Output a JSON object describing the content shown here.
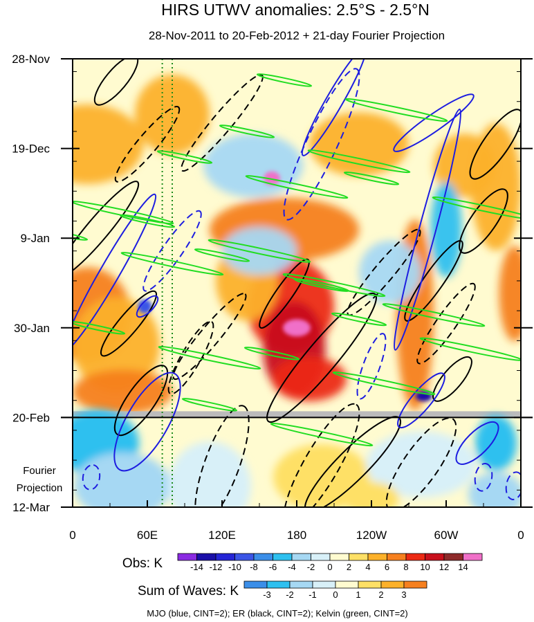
{
  "chart_data": {
    "type": "heatmap",
    "title": "HIRS UTWV anomalies: 2.5°S - 2.5°N",
    "subtitle": "28-Nov-2011 to 20-Feb-2012 + 21-day Fourier Projection",
    "xlabel": "",
    "ylabel": "",
    "x_ticks": [
      {
        "lon": 0,
        "label": "0"
      },
      {
        "lon": 60,
        "label": "60E"
      },
      {
        "lon": 120,
        "label": "120E"
      },
      {
        "lon": 180,
        "label": "180"
      },
      {
        "lon": 240,
        "label": "120W"
      },
      {
        "lon": 300,
        "label": "60W"
      },
      {
        "lon": 360,
        "label": "0"
      }
    ],
    "xlim": [
      0,
      360
    ],
    "y_ticks": [
      {
        "day": 0,
        "label": "28-Nov"
      },
      {
        "day": 21,
        "label": "19-Dec"
      },
      {
        "day": 42,
        "label": "9-Jan"
      },
      {
        "day": 63,
        "label": "30-Jan"
      },
      {
        "day": 84,
        "label": "20-Feb"
      },
      {
        "day": 105,
        "label": "12-Mar"
      }
    ],
    "ylim_days": [
      0,
      105
    ],
    "projection_start_day": 84,
    "projection_label": [
      "Fourier",
      "Projection"
    ],
    "reference_lines_lon": [
      72,
      80
    ],
    "obs_colorbar": {
      "label": "Obs: K",
      "levels": [
        -14,
        -12,
        -10,
        -8,
        -6,
        -4,
        -2,
        0,
        2,
        4,
        6,
        8,
        10,
        12,
        14
      ],
      "colors": [
        "#8a2be2",
        "#1a0fa8",
        "#2525d6",
        "#3b55e6",
        "#3b8ee8",
        "#2ec0ef",
        "#a6d8f3",
        "#d8f0f8",
        "#fffbd0",
        "#fee066",
        "#fcb12a",
        "#f6801f",
        "#ec2a14",
        "#c8101c",
        "#8e2a2a",
        "#f070c8"
      ]
    },
    "waves_colorbar": {
      "label": "Sum of Waves: K",
      "levels": [
        -3,
        -2,
        -1,
        0,
        1,
        2,
        3
      ],
      "colors": [
        "#3b8ee8",
        "#2ec0ef",
        "#a6d8f3",
        "#d8f0f8",
        "#fffbd0",
        "#fee066",
        "#fcb12a",
        "#f6801f"
      ]
    },
    "footer": "MJO (blue, CINT=2); ER (black, CINT=2); Kelvin (green, CINT=2)",
    "series": [
      {
        "name": "MJO",
        "color": "#1d1de0",
        "cint": 2
      },
      {
        "name": "ER",
        "color": "#000000",
        "cint": 2
      },
      {
        "name": "Kelvin",
        "color": "#22dd22",
        "cint": 2
      }
    ]
  }
}
